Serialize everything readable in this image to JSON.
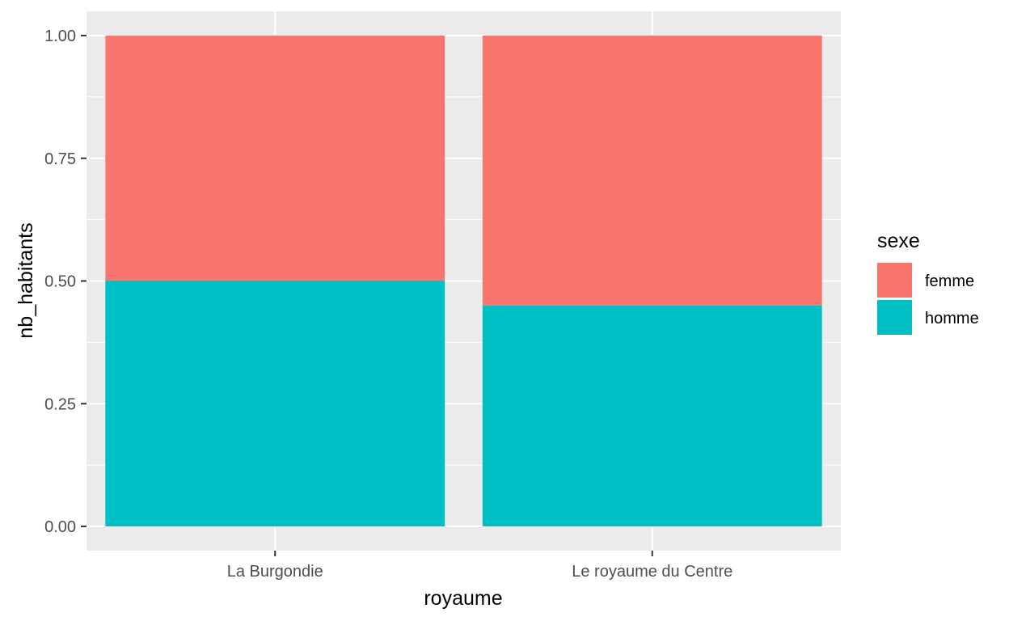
{
  "chart_data": {
    "type": "bar",
    "stacked": true,
    "categories": [
      "La Burgondie",
      "Le royaume du Centre"
    ],
    "series": [
      {
        "name": "homme",
        "values": [
          0.5,
          0.45
        ],
        "color": "#00BFC4"
      },
      {
        "name": "femme",
        "values": [
          0.5,
          0.55
        ],
        "color": "#F8766D"
      }
    ],
    "xlabel": "royaume",
    "ylabel": "nb_habitants",
    "ylim": [
      0,
      1
    ],
    "yticks": [
      "0.00",
      "0.25",
      "0.50",
      "0.75",
      "1.00"
    ],
    "ytick_values": [
      0,
      0.25,
      0.5,
      0.75,
      1
    ],
    "grid": true,
    "panel_background": "#EBEBEB",
    "legend": {
      "title": "sexe",
      "position": "right",
      "items": [
        {
          "label": "femme",
          "color": "#F8766D"
        },
        {
          "label": "homme",
          "color": "#00BFC4"
        }
      ]
    }
  }
}
